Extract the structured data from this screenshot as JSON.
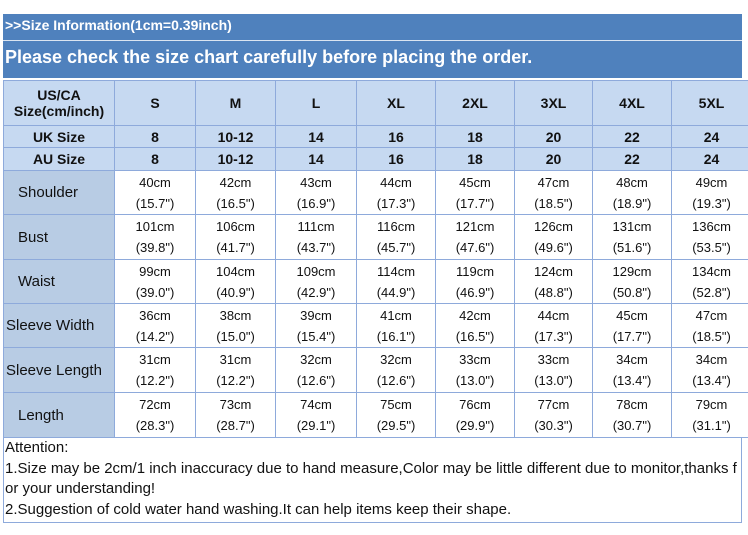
{
  "header": {
    "line1": ">>Size Information(1cm=0.39inch)",
    "line2": "Please check the size chart carefully before placing the order."
  },
  "table": {
    "columns": [
      [
        "US/CA",
        "Size(cm/inch)"
      ],
      "S",
      "M",
      "L",
      "XL",
      "2XL",
      "3XL",
      "4XL",
      "5XL"
    ],
    "size_rows": [
      [
        "UK Size",
        "8",
        "10-12",
        "14",
        "16",
        "18",
        "20",
        "22",
        "24"
      ],
      [
        "AU Size",
        "8",
        "10-12",
        "14",
        "16",
        "18",
        "20",
        "22",
        "24"
      ]
    ],
    "measure_rows": [
      {
        "label": "Shoulder",
        "values": [
          [
            "40cm",
            "(15.7\")"
          ],
          [
            "42cm",
            "(16.5\")"
          ],
          [
            "43cm",
            "(16.9\")"
          ],
          [
            "44cm",
            "(17.3\")"
          ],
          [
            "45cm",
            "(17.7\")"
          ],
          [
            "47cm",
            "(18.5\")"
          ],
          [
            "48cm",
            "(18.9\")"
          ],
          [
            "49cm",
            "(19.3\")"
          ]
        ]
      },
      {
        "label": "Bust",
        "values": [
          [
            "101cm",
            "(39.8\")"
          ],
          [
            "106cm",
            "(41.7\")"
          ],
          [
            "111cm",
            "(43.7\")"
          ],
          [
            "116cm",
            "(45.7\")"
          ],
          [
            "121cm",
            "(47.6\")"
          ],
          [
            "126cm",
            "(49.6\")"
          ],
          [
            "131cm",
            "(51.6\")"
          ],
          [
            "136cm",
            "(53.5\")"
          ]
        ]
      },
      {
        "label": "Waist",
        "values": [
          [
            "99cm",
            "(39.0\")"
          ],
          [
            "104cm",
            "(40.9\")"
          ],
          [
            "109cm",
            "(42.9\")"
          ],
          [
            "114cm",
            "(44.9\")"
          ],
          [
            "119cm",
            "(46.9\")"
          ],
          [
            "124cm",
            "(48.8\")"
          ],
          [
            "129cm",
            "(50.8\")"
          ],
          [
            "134cm",
            "(52.8\")"
          ]
        ]
      },
      {
        "label": "Sleeve Width",
        "values": [
          [
            "36cm",
            "(14.2\")"
          ],
          [
            "38cm",
            "(15.0\")"
          ],
          [
            "39cm",
            "(15.4\")"
          ],
          [
            "41cm",
            "(16.1\")"
          ],
          [
            "42cm",
            "(16.5\")"
          ],
          [
            "44cm",
            "(17.3\")"
          ],
          [
            "45cm",
            "(17.7\")"
          ],
          [
            "47cm",
            "(18.5\")"
          ]
        ]
      },
      {
        "label": "Sleeve Length",
        "values": [
          [
            "31cm",
            "(12.2\")"
          ],
          [
            "31cm",
            "(12.2\")"
          ],
          [
            "32cm",
            "(12.6\")"
          ],
          [
            "32cm",
            "(12.6\")"
          ],
          [
            "33cm",
            "(13.0\")"
          ],
          [
            "33cm",
            "(13.0\")"
          ],
          [
            "34cm",
            "(13.4\")"
          ],
          [
            "34cm",
            "(13.4\")"
          ]
        ]
      },
      {
        "label": "Length",
        "values": [
          [
            "72cm",
            "(28.3\")"
          ],
          [
            "73cm",
            "(28.7\")"
          ],
          [
            "74cm",
            "(29.1\")"
          ],
          [
            "75cm",
            "(29.5\")"
          ],
          [
            "76cm",
            "(29.9\")"
          ],
          [
            "77cm",
            "(30.3\")"
          ],
          [
            "78cm",
            "(30.7\")"
          ],
          [
            "79cm",
            "(31.1\")"
          ]
        ]
      }
    ]
  },
  "notes": {
    "title": "Attention:",
    "lines": [
      "1.Size may be 2cm/1 inch inaccuracy due to hand measure,Color may be little different due to monitor,thanks for your understanding!",
      "2.Suggestion of cold water hand washing.It can help items keep their shape."
    ]
  }
}
